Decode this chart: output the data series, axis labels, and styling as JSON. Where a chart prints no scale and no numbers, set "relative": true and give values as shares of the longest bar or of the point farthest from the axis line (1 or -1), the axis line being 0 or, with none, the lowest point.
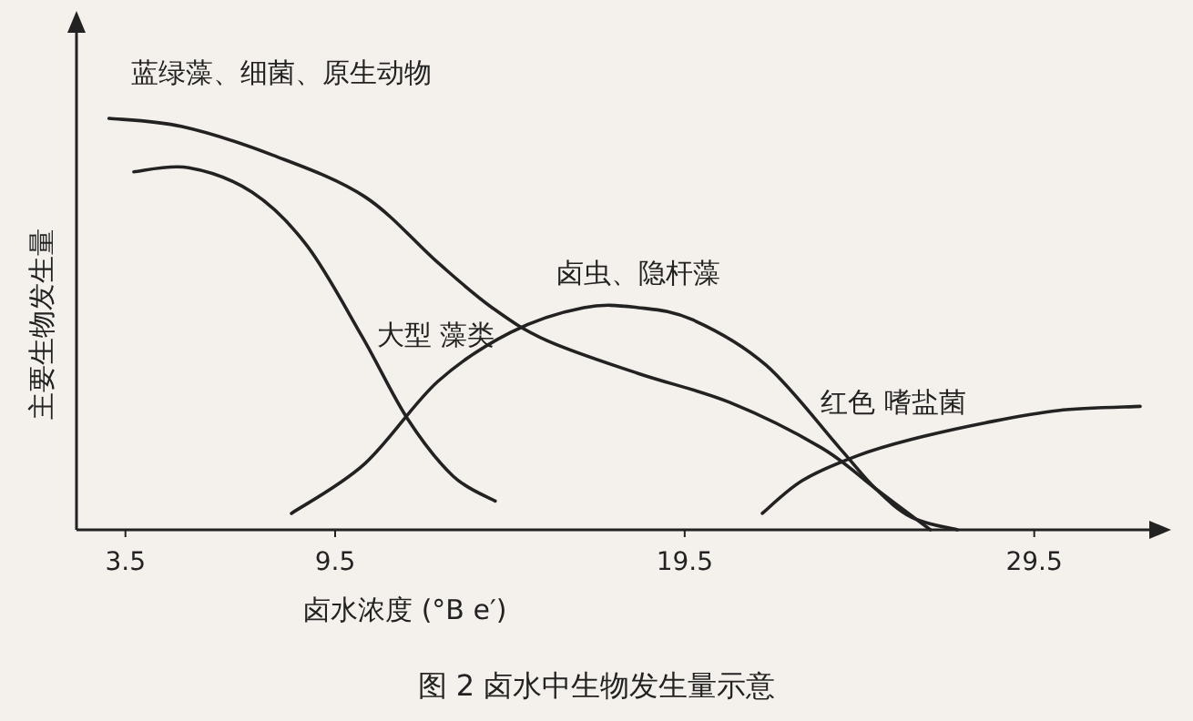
{
  "chart_data": {
    "type": "line",
    "relative": true,
    "title": "图 2  卤水中生物发生量示意",
    "xlabel": "卤水浓度 (°B e′)",
    "ylabel": "主要生物发生量",
    "xlim": [
      2.1,
      33
    ],
    "xticks": [
      3.5,
      9.5,
      19.5,
      29.5
    ],
    "grid": false,
    "marker": "none",
    "line_style": "solid",
    "series": [
      {
        "name": "蓝绿藻、细菌、原生动物",
        "color": "#222222",
        "x": [
          3.03,
          5.12,
          7.73,
          10.34,
          12.43,
          13.99,
          15.56,
          18.17,
          20.78,
          23.4,
          24.96,
          26.53
        ],
        "values": [
          1.0,
          0.98,
          0.91,
          0.81,
          0.65,
          0.54,
          0.46,
          0.38,
          0.31,
          0.2,
          0.1,
          0.0
        ]
      },
      {
        "name": "大型 藻类",
        "color": "#222222",
        "x": [
          3.74,
          5.31,
          7.13,
          8.7,
          10.27,
          11.57,
          12.88,
          14.08
        ],
        "values": [
          0.87,
          0.88,
          0.82,
          0.69,
          0.47,
          0.27,
          0.13,
          0.07
        ]
      },
      {
        "name": "卤虫、隐杆藻",
        "color": "#222222",
        "x": [
          8.25,
          10.34,
          12.43,
          14.52,
          16.61,
          18.17,
          19.74,
          21.83,
          23.92,
          24.96,
          26.0,
          27.3
        ],
        "values": [
          0.04,
          0.16,
          0.36,
          0.48,
          0.54,
          0.54,
          0.51,
          0.4,
          0.2,
          0.1,
          0.03,
          0.0
        ]
      },
      {
        "name": "红色 嗜盐菌",
        "color": "#222222",
        "x": [
          21.72,
          22.87,
          24.44,
          26.0,
          28.1,
          30.18,
          32.53
        ],
        "values": [
          0.04,
          0.12,
          0.18,
          0.22,
          0.26,
          0.29,
          0.3
        ]
      }
    ]
  }
}
